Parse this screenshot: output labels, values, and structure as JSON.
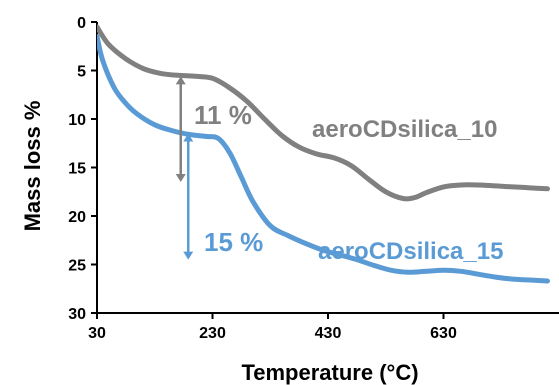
{
  "chart_data": {
    "type": "line",
    "title": "",
    "xlabel": "Temperature (°C)",
    "ylabel": "Mass loss %",
    "xlim": [
      30,
      830
    ],
    "ylim": [
      0,
      30
    ],
    "y_inverted": true,
    "x_ticks": [
      30,
      230,
      430,
      630
    ],
    "y_ticks": [
      0,
      5,
      10,
      15,
      20,
      25,
      30
    ],
    "y_tick_labels": [
      "0",
      "5",
      "10",
      "15",
      "20",
      "25",
      "30"
    ],
    "grid": false,
    "legend": "none",
    "series": [
      {
        "name": "aeroCDsilica_10",
        "color": "#808080",
        "x": [
          30,
          50,
          80,
          110,
          140,
          170,
          200,
          230,
          260,
          290,
          320,
          350,
          380,
          410,
          440,
          470,
          500,
          530,
          560,
          580,
          600,
          630,
          660,
          690,
          720,
          750,
          780,
          810
        ],
        "y": [
          0.5,
          2.3,
          3.8,
          4.8,
          5.3,
          5.5,
          5.6,
          5.8,
          6.8,
          8.2,
          10.0,
          11.7,
          12.9,
          13.6,
          14.0,
          14.8,
          16.2,
          17.5,
          18.2,
          18.1,
          17.6,
          17.0,
          16.8,
          16.8,
          16.9,
          17.0,
          17.1,
          17.2
        ]
      },
      {
        "name": "aeroCDsilica_15",
        "color": "#5B9BD5",
        "x": [
          30,
          40,
          60,
          80,
          100,
          130,
          160,
          190,
          220,
          240,
          260,
          280,
          300,
          330,
          360,
          390,
          420,
          450,
          480,
          510,
          540,
          570,
          600,
          630,
          660,
          690,
          720,
          750,
          780,
          810
        ],
        "y": [
          1.5,
          4.0,
          6.8,
          8.4,
          9.5,
          10.6,
          11.2,
          11.6,
          11.8,
          12.0,
          13.5,
          16.0,
          18.5,
          21.0,
          22.0,
          22.8,
          23.5,
          24.0,
          24.5,
          25.1,
          25.6,
          25.8,
          25.7,
          25.6,
          25.7,
          26.0,
          26.3,
          26.5,
          26.6,
          26.7
        ]
      }
    ],
    "annotations": [
      {
        "text": "11 %",
        "x_data": 175,
        "y_from": 5.6,
        "y_to": 16.5,
        "color": "#808080"
      },
      {
        "text": "15 %",
        "x_data": 188,
        "y_from": 11.5,
        "y_to": 24.5,
        "color": "#5B9BD5"
      }
    ]
  }
}
